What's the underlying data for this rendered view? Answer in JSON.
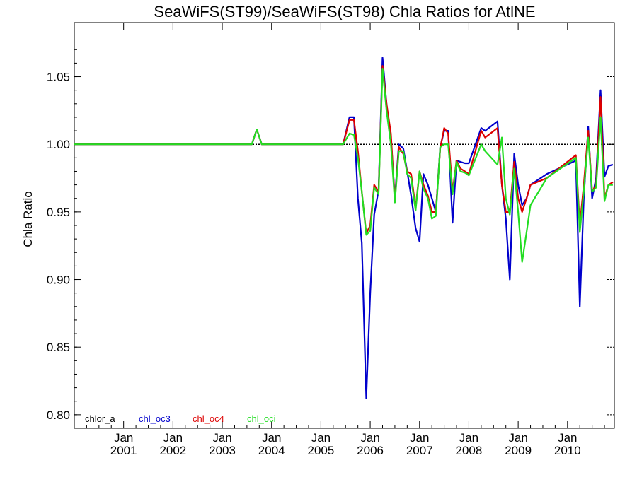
{
  "chart_data": {
    "type": "line",
    "title": "SeaWiFS(ST99)/SeaWiFS(ST98)  Chla Ratios for AtlNE",
    "ylabel": "Chla Ratio",
    "xlabel": "",
    "ylim": [
      0.79,
      1.09
    ],
    "xlim": [
      2000.0,
      2010.95
    ],
    "yticks": [
      {
        "value": 0.8,
        "label": "0.80"
      },
      {
        "value": 0.85,
        "label": "0.85"
      },
      {
        "value": 0.9,
        "label": "0.90"
      },
      {
        "value": 0.95,
        "label": "0.95"
      },
      {
        "value": 1.0,
        "label": "1.00"
      },
      {
        "value": 1.05,
        "label": "1.05"
      }
    ],
    "xticks": [
      {
        "value": 2001,
        "month": "Jan",
        "year": "2001"
      },
      {
        "value": 2002,
        "month": "Jan",
        "year": "2002"
      },
      {
        "value": 2003,
        "month": "Jan",
        "year": "2003"
      },
      {
        "value": 2004,
        "month": "Jan",
        "year": "2004"
      },
      {
        "value": 2005,
        "month": "Jan",
        "year": "2005"
      },
      {
        "value": 2006,
        "month": "Jan",
        "year": "2006"
      },
      {
        "value": 2007,
        "month": "Jan",
        "year": "2007"
      },
      {
        "value": 2008,
        "month": "Jan",
        "year": "2008"
      },
      {
        "value": 2009,
        "month": "Jan",
        "year": "2009"
      },
      {
        "value": 2010,
        "month": "Jan",
        "year": "2010"
      }
    ],
    "reference_line": 1.0,
    "grid": false,
    "legend_position": "bottom-left",
    "series": [
      {
        "name": "chlor_a",
        "color": "#000000",
        "x": [
          2000.0,
          2010.95
        ],
        "values": [
          1.0,
          1.0
        ]
      },
      {
        "name": "chl_oc3",
        "color": "#0000cc",
        "x": [
          2000.0,
          2003.6,
          2003.7,
          2003.8,
          2005.45,
          2005.58,
          2005.67,
          2005.75,
          2005.83,
          2005.92,
          2006.0,
          2006.08,
          2006.17,
          2006.25,
          2006.33,
          2006.42,
          2006.5,
          2006.58,
          2006.67,
          2006.75,
          2006.83,
          2006.92,
          2007.0,
          2007.08,
          2007.17,
          2007.25,
          2007.33,
          2007.42,
          2007.5,
          2007.58,
          2007.67,
          2007.75,
          2007.83,
          2007.92,
          2008.0,
          2008.25,
          2008.33,
          2008.58,
          2008.67,
          2008.75,
          2008.83,
          2008.92,
          2009.0,
          2009.08,
          2009.17,
          2009.25,
          2009.58,
          2010.17,
          2010.25,
          2010.33,
          2010.42,
          2010.5,
          2010.58,
          2010.67,
          2010.75,
          2010.83,
          2010.92
        ],
        "values": [
          1.0,
          1.0,
          1.011,
          1.0,
          1.0,
          1.02,
          1.02,
          0.96,
          0.927,
          0.812,
          0.89,
          0.948,
          0.966,
          1.064,
          1.03,
          1.005,
          0.96,
          1.0,
          0.997,
          0.98,
          0.962,
          0.938,
          0.928,
          0.978,
          0.97,
          0.96,
          0.95,
          0.998,
          1.01,
          1.01,
          0.942,
          0.988,
          0.987,
          0.986,
          0.986,
          1.012,
          1.01,
          1.017,
          0.97,
          0.945,
          0.9,
          0.993,
          0.97,
          0.955,
          0.96,
          0.97,
          0.978,
          0.988,
          0.88,
          0.96,
          1.013,
          0.96,
          0.975,
          1.04,
          0.976,
          0.984,
          0.985
        ]
      },
      {
        "name": "chl_oc4",
        "color": "#dd0000",
        "x": [
          2000.0,
          2003.6,
          2003.7,
          2003.8,
          2005.45,
          2005.58,
          2005.67,
          2005.75,
          2005.83,
          2005.92,
          2006.0,
          2006.08,
          2006.17,
          2006.25,
          2006.33,
          2006.42,
          2006.5,
          2006.58,
          2006.67,
          2006.75,
          2006.83,
          2006.92,
          2007.0,
          2007.08,
          2007.17,
          2007.25,
          2007.33,
          2007.42,
          2007.5,
          2007.58,
          2007.67,
          2007.75,
          2007.83,
          2007.92,
          2008.0,
          2008.25,
          2008.33,
          2008.58,
          2008.67,
          2008.75,
          2008.83,
          2008.92,
          2009.0,
          2009.08,
          2009.17,
          2009.25,
          2009.58,
          2010.17,
          2010.25,
          2010.33,
          2010.42,
          2010.5,
          2010.58,
          2010.67,
          2010.75,
          2010.83,
          2010.92
        ],
        "values": [
          1.0,
          1.0,
          1.011,
          1.0,
          1.0,
          1.018,
          1.018,
          0.995,
          0.965,
          0.934,
          0.94,
          0.97,
          0.965,
          1.058,
          1.03,
          1.008,
          0.958,
          0.998,
          0.993,
          0.98,
          0.978,
          0.953,
          0.98,
          0.97,
          0.962,
          0.95,
          0.95,
          0.997,
          1.012,
          1.008,
          0.965,
          0.988,
          0.982,
          0.98,
          0.978,
          1.01,
          1.005,
          1.012,
          0.97,
          0.95,
          0.95,
          0.987,
          0.96,
          0.95,
          0.96,
          0.97,
          0.975,
          0.992,
          0.94,
          0.97,
          1.01,
          0.965,
          0.97,
          1.035,
          0.96,
          0.97,
          0.972
        ]
      },
      {
        "name": "chl_oci",
        "color": "#22dd22",
        "x": [
          2000.0,
          2003.6,
          2003.7,
          2003.8,
          2005.45,
          2005.58,
          2005.67,
          2005.75,
          2005.83,
          2005.92,
          2006.0,
          2006.08,
          2006.17,
          2006.25,
          2006.33,
          2006.42,
          2006.5,
          2006.58,
          2006.67,
          2006.75,
          2006.83,
          2006.92,
          2007.0,
          2007.08,
          2007.17,
          2007.25,
          2007.33,
          2007.42,
          2007.5,
          2007.58,
          2007.67,
          2007.75,
          2007.83,
          2007.92,
          2008.0,
          2008.25,
          2008.33,
          2008.58,
          2008.67,
          2008.75,
          2008.83,
          2008.92,
          2009.0,
          2009.08,
          2009.17,
          2009.25,
          2009.58,
          2010.17,
          2010.25,
          2010.33,
          2010.42,
          2010.5,
          2010.58,
          2010.67,
          2010.75,
          2010.83,
          2010.92
        ],
        "values": [
          1.0,
          1.0,
          1.011,
          1.0,
          1.0,
          1.008,
          1.007,
          0.99,
          0.965,
          0.933,
          0.936,
          0.968,
          0.963,
          1.056,
          1.025,
          1.0,
          0.957,
          0.995,
          0.995,
          0.978,
          0.975,
          0.951,
          0.98,
          0.967,
          0.96,
          0.945,
          0.947,
          0.998,
          1.0,
          1.0,
          0.963,
          0.987,
          0.98,
          0.979,
          0.977,
          1.0,
          0.995,
          0.985,
          1.005,
          0.96,
          0.948,
          0.982,
          0.95,
          0.913,
          0.935,
          0.955,
          0.975,
          0.99,
          0.935,
          0.965,
          1.005,
          0.965,
          0.968,
          1.02,
          0.958,
          0.97,
          0.97
        ]
      }
    ]
  }
}
